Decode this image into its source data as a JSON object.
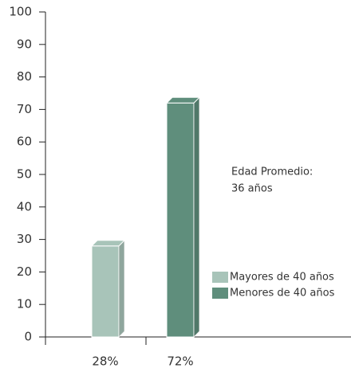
{
  "chart_data": {
    "type": "bar3d",
    "categories": [
      null,
      null
    ],
    "series": [
      {
        "name": "Mayores de 40 años",
        "color": "#a8c4b9",
        "values": [
          28,
          null
        ],
        "value_labels": [
          "28%",
          null
        ]
      },
      {
        "name": "Menores de 40 años",
        "color": "#5f8e7c",
        "values": [
          null,
          72
        ],
        "value_labels": [
          null,
          "72%"
        ]
      }
    ],
    "annotations": [
      "Edad Promedio:",
      "36 años"
    ],
    "ylim": [
      0,
      100
    ],
    "yticks": [
      0,
      10,
      20,
      30,
      40,
      50,
      60,
      70,
      80,
      90,
      100
    ],
    "grid": false
  }
}
